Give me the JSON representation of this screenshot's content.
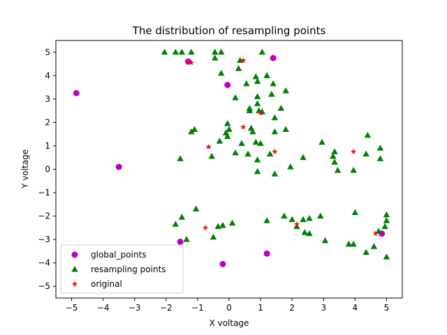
{
  "chart_data": {
    "type": "scatter",
    "title": "The distribution of resampling points",
    "xlabel": "X voltage",
    "ylabel": "Y voltage",
    "xlim": [
      -5.5,
      5.5
    ],
    "ylim": [
      -5.5,
      5.5
    ],
    "xticks": [
      -5,
      -4,
      -3,
      -2,
      -1,
      0,
      1,
      2,
      3,
      4,
      5
    ],
    "yticks": [
      -5,
      -4,
      -3,
      -2,
      -1,
      0,
      1,
      2,
      3,
      4,
      5
    ],
    "xtick_labels": [
      "−5",
      "−4",
      "−3",
      "−2",
      "−1",
      "0",
      "1",
      "2",
      "3",
      "4",
      "5"
    ],
    "ytick_labels": [
      "−5",
      "−4",
      "−3",
      "−2",
      "−1",
      "0",
      "1",
      "2",
      "3",
      "4",
      "5"
    ],
    "grid": false,
    "legend_position": "lower-left",
    "series": [
      {
        "name": "global_points",
        "marker": "circle",
        "color": "#bf00bf",
        "points": [
          [
            -4.85,
            3.25
          ],
          [
            -3.5,
            0.1
          ],
          [
            -1.3,
            4.6
          ],
          [
            -0.05,
            3.6
          ],
          [
            1.4,
            4.75
          ],
          [
            -1.55,
            -3.1
          ],
          [
            -0.2,
            -4.05
          ],
          [
            1.2,
            -3.6
          ],
          [
            4.85,
            -2.75
          ]
        ]
      },
      {
        "name": "resampling points",
        "marker": "triangle",
        "color": "#008000",
        "points": [
          [
            -2.05,
            5.0
          ],
          [
            -1.7,
            5.0
          ],
          [
            -1.5,
            5.0
          ],
          [
            -1.2,
            5.0
          ],
          [
            -0.45,
            4.75
          ],
          [
            -0.45,
            5.0
          ],
          [
            -0.25,
            5.0
          ],
          [
            0.3,
            4.3
          ],
          [
            0.35,
            4.65
          ],
          [
            1.05,
            5.0
          ],
          [
            -0.25,
            4.1
          ],
          [
            0.85,
            3.95
          ],
          [
            0.9,
            3.75
          ],
          [
            1.2,
            4.0
          ],
          [
            0.55,
            3.65
          ],
          [
            1.4,
            3.65
          ],
          [
            0.2,
            3.05
          ],
          [
            0.9,
            3.1
          ],
          [
            1.35,
            3.2
          ],
          [
            1.8,
            3.35
          ],
          [
            0.65,
            2.6
          ],
          [
            0.65,
            2.5
          ],
          [
            0.9,
            2.8
          ],
          [
            0.95,
            2.5
          ],
          [
            1.05,
            2.45
          ],
          [
            1.65,
            2.6
          ],
          [
            1.45,
            2.2
          ],
          [
            -0.05,
            1.95
          ],
          [
            0.0,
            1.7
          ],
          [
            0.75,
            1.6
          ],
          [
            0.7,
            1.75
          ],
          [
            1.45,
            1.6
          ],
          [
            1.8,
            1.7
          ],
          [
            -1.2,
            1.6
          ],
          [
            -1.1,
            1.7
          ],
          [
            -0.1,
            1.55
          ],
          [
            -0.05,
            1.4
          ],
          [
            -0.3,
            1.2
          ],
          [
            0.4,
            1.1
          ],
          [
            0.85,
            1.15
          ],
          [
            1.0,
            1.1
          ],
          [
            -1.55,
            0.45
          ],
          [
            -0.55,
            0.55
          ],
          [
            0.2,
            0.7
          ],
          [
            0.6,
            0.65
          ],
          [
            0.9,
            0.4
          ],
          [
            1.3,
            0.65
          ],
          [
            0.9,
            -0.1
          ],
          [
            1.45,
            -0.2
          ],
          [
            1.95,
            0.1
          ],
          [
            2.35,
            0.5
          ],
          [
            2.95,
            1.15
          ],
          [
            3.35,
            0.75
          ],
          [
            3.3,
            0.55
          ],
          [
            3.35,
            0.3
          ],
          [
            3.45,
            -0.05
          ],
          [
            3.95,
            -0.05
          ],
          [
            4.35,
            0.65
          ],
          [
            4.4,
            1.45
          ],
          [
            4.8,
            0.9
          ],
          [
            4.8,
            0.45
          ],
          [
            -1.7,
            -2.35
          ],
          [
            -1.5,
            -2.05
          ],
          [
            -1.35,
            -3.0
          ],
          [
            -1.05,
            -1.7
          ],
          [
            -0.5,
            -2.9
          ],
          [
            -0.35,
            -2.45
          ],
          [
            -0.2,
            -2.4
          ],
          [
            0.1,
            -2.3
          ],
          [
            1.2,
            -2.2
          ],
          [
            1.75,
            -2.0
          ],
          [
            2.0,
            -2.15
          ],
          [
            2.15,
            -2.45
          ],
          [
            2.35,
            -2.15
          ],
          [
            2.4,
            -2.7
          ],
          [
            2.55,
            -2.75
          ],
          [
            2.55,
            -2.1
          ],
          [
            2.9,
            -2.0
          ],
          [
            3.05,
            -3.05
          ],
          [
            3.8,
            -3.2
          ],
          [
            3.95,
            -3.2
          ],
          [
            4.0,
            -1.85
          ],
          [
            4.35,
            -3.55
          ],
          [
            4.6,
            -3.3
          ],
          [
            4.75,
            -2.65
          ],
          [
            5.0,
            -1.95
          ],
          [
            5.0,
            -2.2
          ],
          [
            4.95,
            -2.45
          ],
          [
            5.0,
            -3.75
          ]
        ]
      },
      {
        "name": "original",
        "marker": "star",
        "color": "#ff0000",
        "points": [
          [
            -1.2,
            4.55
          ],
          [
            0.45,
            4.65
          ],
          [
            0.45,
            1.8
          ],
          [
            1.0,
            2.4
          ],
          [
            -0.65,
            0.95
          ],
          [
            1.45,
            0.75
          ],
          [
            3.95,
            0.75
          ],
          [
            -0.75,
            -2.5
          ],
          [
            2.15,
            -2.35
          ],
          [
            4.65,
            -2.75
          ]
        ]
      }
    ]
  }
}
